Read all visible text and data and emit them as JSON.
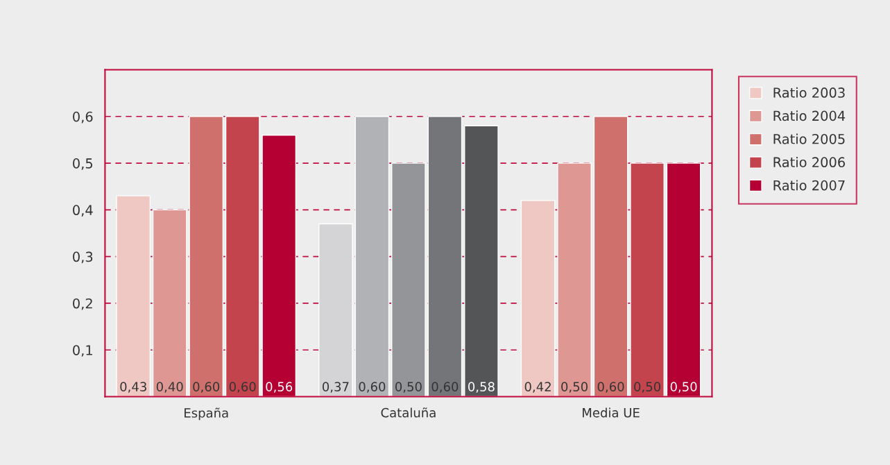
{
  "chart_data": {
    "type": "bar",
    "categories": [
      "España",
      "Cataluña",
      "Media UE"
    ],
    "series": [
      {
        "name": "Ratio 2003",
        "color": "#f0c8c3",
        "colors": [
          "#f0c8c3",
          "#d4d4d6",
          "#f0c8c3"
        ],
        "values": [
          0.43,
          0.37,
          0.42
        ],
        "value_labels": [
          "0,43",
          "0,37",
          "0,42"
        ]
      },
      {
        "name": "Ratio 2004",
        "color": "#de9792",
        "colors": [
          "#de9792",
          "#b1b2b6",
          "#de9792"
        ],
        "values": [
          0.4,
          0.6,
          0.5
        ],
        "value_labels": [
          "0,40",
          "0,60",
          "0,50"
        ]
      },
      {
        "name": "Ratio 2005",
        "color": "#d0706c",
        "colors": [
          "#d0706c",
          "#949598",
          "#d0706c"
        ],
        "values": [
          0.6,
          0.5,
          0.6
        ],
        "value_labels": [
          "0,60",
          "0,50",
          "0,60"
        ]
      },
      {
        "name": "Ratio 2006",
        "color": "#c3444d",
        "colors": [
          "#c3444d",
          "#747579",
          "#c3444d"
        ],
        "values": [
          0.6,
          0.6,
          0.5
        ],
        "value_labels": [
          "0,60",
          "0,60",
          "0,50"
        ]
      },
      {
        "name": "Ratio 2007",
        "color": "#b40032",
        "colors": [
          "#b40032",
          "#545557",
          "#b40032"
        ],
        "values": [
          0.56,
          0.58,
          0.5
        ],
        "value_labels": [
          "0,56",
          "0,58",
          "0,50"
        ]
      }
    ],
    "ylim": [
      0,
      0.7
    ],
    "yticks": [
      {
        "value": 0.1,
        "label": "0,1"
      },
      {
        "value": 0.2,
        "label": "0,2"
      },
      {
        "value": 0.3,
        "label": "0,3"
      },
      {
        "value": 0.4,
        "label": "0,4"
      },
      {
        "value": 0.5,
        "label": "0,5"
      },
      {
        "value": 0.6,
        "label": "0,6"
      }
    ],
    "grid": "y",
    "legend": "right"
  }
}
